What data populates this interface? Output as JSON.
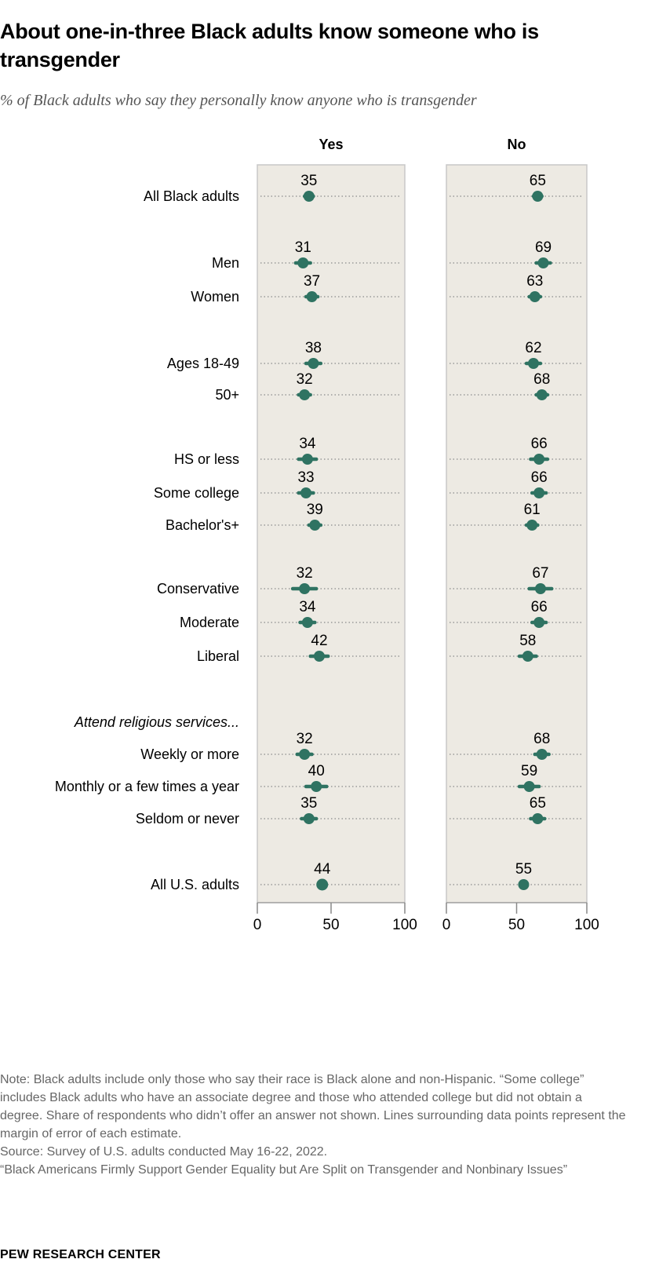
{
  "title": "About one-in-three Black adults know someone who is transgender",
  "subtitle": "% of Black adults who say they personally know anyone who is transgender",
  "chart_data": {
    "type": "dot",
    "columns": [
      "Yes",
      "No"
    ],
    "section_label": "Attend religious services...",
    "rows": [
      {
        "label": "All Black adults",
        "yes": 35,
        "no": 65,
        "moe": 3
      },
      {
        "label": "Men",
        "yes": 31,
        "no": 69,
        "moe": 5
      },
      {
        "label": "Women",
        "yes": 37,
        "no": 63,
        "moe": 4
      },
      {
        "label": "Ages 18-49",
        "yes": 38,
        "no": 62,
        "moe": 5
      },
      {
        "label": "50+",
        "yes": 32,
        "no": 68,
        "moe": 4
      },
      {
        "label": "HS or less",
        "yes": 34,
        "no": 66,
        "moe": 6
      },
      {
        "label": "Some college",
        "yes": 33,
        "no": 66,
        "moe": 5
      },
      {
        "label": "Bachelor's+",
        "yes": 39,
        "no": 61,
        "moe": 4
      },
      {
        "label": "Conservative",
        "yes": 32,
        "no": 67,
        "moe": 8
      },
      {
        "label": "Moderate",
        "yes": 34,
        "no": 66,
        "moe": 5
      },
      {
        "label": "Liberal",
        "yes": 42,
        "no": 58,
        "moe": 6
      },
      {
        "label": "Weekly or more",
        "yes": 32,
        "no": 68,
        "moe": 5
      },
      {
        "label": "Monthly or a few times a year",
        "yes": 40,
        "no": 59,
        "moe": 7
      },
      {
        "label": "Seldom or never",
        "yes": 35,
        "no": 65,
        "moe": 5
      },
      {
        "label": "All U.S. adults",
        "yes": 44,
        "no": 55,
        "moe": 0
      }
    ],
    "xlim": [
      0,
      100
    ],
    "ticks": [
      "0",
      "50",
      "100"
    ],
    "color": "#2f7362"
  },
  "note": [
    "Note: Black adults include only those who say their race is Black alone and non-Hispanic. “Some college” includes Black adults who have an associate degree and those who attended college but did not obtain a degree. Share of respondents who didn’t offer an answer not shown. Lines surrounding data points represent the margin of error of each estimate.",
    "Source: Survey of U.S. adults conducted May 16-22, 2022.",
    "“Black Americans Firmly Support Gender Equality but Are Split on Transgender and Nonbinary Issues”"
  ],
  "brand": "PEW RESEARCH CENTER"
}
